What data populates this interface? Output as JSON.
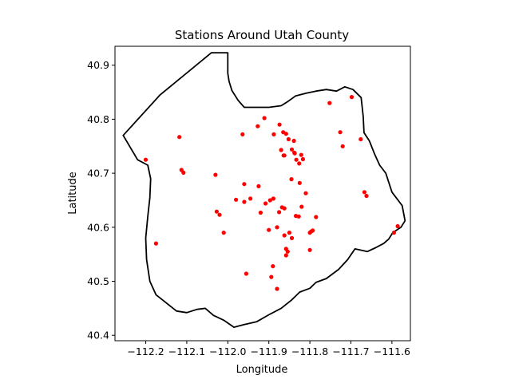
{
  "chart_data": {
    "type": "scatter",
    "title": "Stations Around Utah County",
    "xlabel": "Longitude",
    "ylabel": "Latitude",
    "xlim": [
      -112.275,
      -111.555
    ],
    "ylim": [
      40.39,
      40.935
    ],
    "xticks": [
      -112.2,
      -112.1,
      -112.0,
      -111.9,
      -111.8,
      -111.7,
      -111.6
    ],
    "xtick_labels": [
      "−112.2",
      "−112.1",
      "−112.0",
      "−111.9",
      "−111.8",
      "−111.7",
      "−111.6"
    ],
    "yticks": [
      40.4,
      40.5,
      40.6,
      40.7,
      40.8,
      40.9
    ],
    "ytick_labels": [
      "40.4",
      "40.5",
      "40.6",
      "40.7",
      "40.8",
      "40.9"
    ],
    "grid": false,
    "marker_color": "#ff0000",
    "boundary_color": "#000000",
    "boundary": [
      [
        -112.255,
        40.77
      ],
      [
        -112.165,
        40.845
      ],
      [
        -112.04,
        40.923
      ],
      [
        -112.0,
        40.923
      ],
      [
        -112.0,
        40.885
      ],
      [
        -111.997,
        40.87
      ],
      [
        -111.99,
        40.853
      ],
      [
        -111.975,
        40.835
      ],
      [
        -111.96,
        40.822
      ],
      [
        -111.9,
        40.822
      ],
      [
        -111.87,
        40.825
      ],
      [
        -111.855,
        40.832
      ],
      [
        -111.835,
        40.843
      ],
      [
        -111.81,
        40.848
      ],
      [
        -111.785,
        40.852
      ],
      [
        -111.76,
        40.855
      ],
      [
        -111.735,
        40.852
      ],
      [
        -111.715,
        40.86
      ],
      [
        -111.695,
        40.855
      ],
      [
        -111.675,
        40.84
      ],
      [
        -111.67,
        40.805
      ],
      [
        -111.668,
        40.775
      ],
      [
        -111.655,
        40.76
      ],
      [
        -111.642,
        40.735
      ],
      [
        -111.63,
        40.715
      ],
      [
        -111.615,
        40.7
      ],
      [
        -111.6,
        40.665
      ],
      [
        -111.575,
        40.64
      ],
      [
        -111.568,
        40.612
      ],
      [
        -111.578,
        40.6
      ],
      [
        -111.598,
        40.59
      ],
      [
        -111.608,
        40.578
      ],
      [
        -111.62,
        40.57
      ],
      [
        -111.64,
        40.562
      ],
      [
        -111.66,
        40.555
      ],
      [
        -111.69,
        40.56
      ],
      [
        -111.708,
        40.54
      ],
      [
        -111.73,
        40.522
      ],
      [
        -111.76,
        40.505
      ],
      [
        -111.785,
        40.498
      ],
      [
        -111.8,
        40.487
      ],
      [
        -111.825,
        40.48
      ],
      [
        -111.845,
        40.465
      ],
      [
        -111.87,
        40.45
      ],
      [
        -111.9,
        40.438
      ],
      [
        -111.93,
        40.425
      ],
      [
        -111.96,
        40.42
      ],
      [
        -111.985,
        40.415
      ],
      [
        -112.01,
        40.428
      ],
      [
        -112.035,
        40.437
      ],
      [
        -112.055,
        40.45
      ],
      [
        -112.075,
        40.448
      ],
      [
        -112.1,
        40.442
      ],
      [
        -112.125,
        40.445
      ],
      [
        -112.15,
        40.46
      ],
      [
        -112.175,
        40.475
      ],
      [
        -112.19,
        40.5
      ],
      [
        -112.198,
        40.54
      ],
      [
        -112.2,
        40.58
      ],
      [
        -112.195,
        40.62
      ],
      [
        -112.19,
        40.655
      ],
      [
        -112.188,
        40.69
      ],
      [
        -112.195,
        40.715
      ],
      [
        -112.22,
        40.725
      ],
      [
        -112.255,
        40.77
      ]
    ],
    "x": [
      -112.2,
      -112.118,
      -112.113,
      -112.108,
      -112.03,
      -111.964,
      -111.96,
      -111.927,
      -111.911,
      -111.888,
      -111.874,
      -111.865,
      -111.858,
      -111.852,
      -111.844,
      -111.837,
      -111.87,
      -111.864,
      -111.862,
      -111.845,
      -111.838,
      -111.833,
      -111.826,
      -111.821,
      -111.817,
      -111.839,
      -111.825,
      -111.81,
      -111.8,
      -111.785,
      -111.752,
      -111.726,
      -111.72,
      -111.698,
      -111.676,
      -111.667,
      -111.662,
      -111.595,
      -111.586,
      -111.96,
      -111.945,
      -111.925,
      -111.908,
      -111.897,
      -111.889,
      -111.875,
      -111.868,
      -111.862,
      -111.858,
      -111.854,
      -111.85,
      -111.844,
      -111.834,
      -111.827,
      -111.82,
      -111.8,
      -111.797,
      -111.793,
      -112.027,
      -112.02,
      -112.01,
      -111.98,
      -111.92,
      -111.88,
      -111.89,
      -111.955,
      -111.894,
      -111.88,
      -111.862,
      -111.858,
      -112.175,
      -111.9
    ],
    "y": [
      40.725,
      40.767,
      40.706,
      40.701,
      40.697,
      40.772,
      40.68,
      40.787,
      40.802,
      40.772,
      40.79,
      40.776,
      40.773,
      40.763,
      40.744,
      40.737,
      40.743,
      40.733,
      40.733,
      40.689,
      40.738,
      40.725,
      40.718,
      40.734,
      40.726,
      40.76,
      40.682,
      40.663,
      40.59,
      40.619,
      40.83,
      40.776,
      40.75,
      40.841,
      40.763,
      40.665,
      40.658,
      40.59,
      40.602,
      40.647,
      40.653,
      40.676,
      40.644,
      40.65,
      40.653,
      40.628,
      40.637,
      40.635,
      40.56,
      40.555,
      40.59,
      40.58,
      40.621,
      40.62,
      40.638,
      40.558,
      40.592,
      40.594,
      40.629,
      40.623,
      40.59,
      40.651,
      40.627,
      40.6,
      40.528,
      40.514,
      40.508,
      40.486,
      40.585,
      40.548,
      40.57,
      40.595
    ]
  }
}
